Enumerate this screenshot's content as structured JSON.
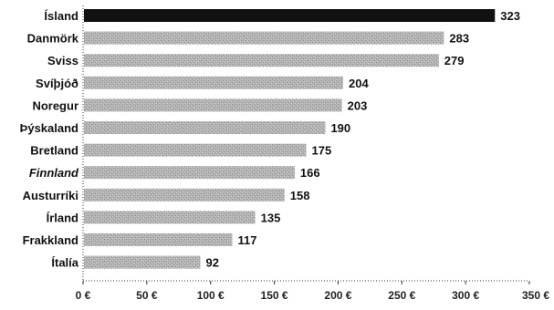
{
  "chart_data": {
    "type": "bar",
    "orientation": "horizontal",
    "categories": [
      "Ísland",
      "Danmörk",
      "Sviss",
      "Svíþjóð",
      "Noregur",
      "Þýskaland",
      "Bretland",
      "Finnland",
      "Austurríki",
      "Írland",
      "Frakkland",
      "Ítalía"
    ],
    "values": [
      323,
      283,
      279,
      204,
      203,
      190,
      175,
      166,
      158,
      135,
      117,
      92
    ],
    "title": "",
    "xlabel": "",
    "ylabel": "",
    "xlim": [
      0,
      350
    ],
    "xticks": [
      0,
      50,
      100,
      150,
      200,
      250,
      300,
      350
    ],
    "tick_labels": [
      "0 €",
      "50 €",
      "100 €",
      "150 €",
      "200 €",
      "250 €",
      "300 €",
      "350 €"
    ],
    "grid": false,
    "legend": "none",
    "highlight_category": "Ísland",
    "colors": {
      "highlight_bar": "#111111",
      "bar": "#a9a9a9",
      "axis": "#333333"
    }
  }
}
